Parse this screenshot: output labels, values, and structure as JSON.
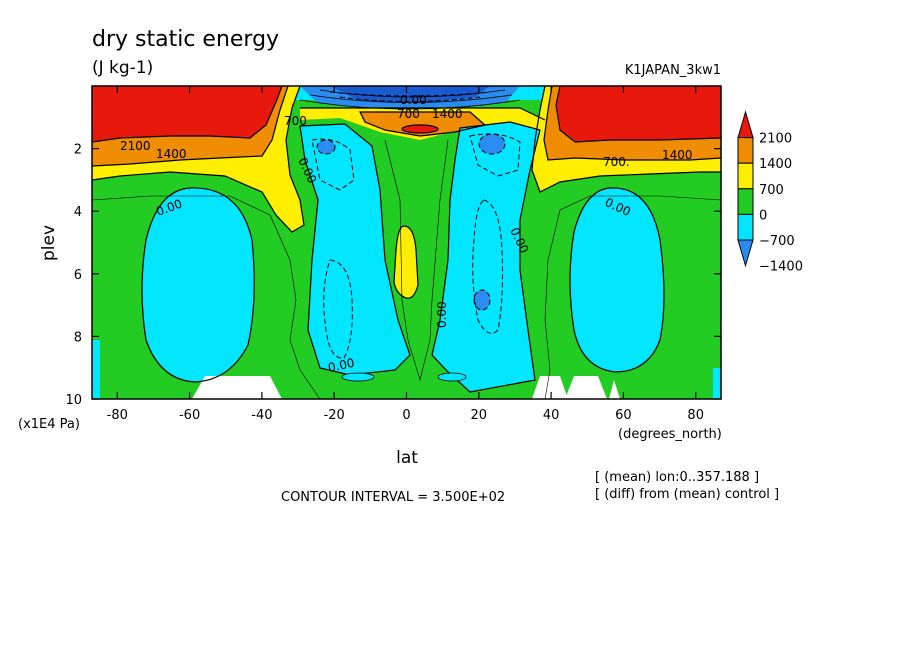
{
  "chart_data": {
    "type": "contour",
    "title": "dry static energy",
    "units": "(J kg-1)",
    "run_label": "K1JAPAN_3kw1",
    "xlabel": "lat",
    "ylabel": "plev",
    "x_unit_label": "(degrees_north)",
    "y_unit_label": "(x1E4 Pa)",
    "xlim": [
      -87,
      87
    ],
    "ylim": [
      10,
      0
    ],
    "x_ticks": [
      "-80",
      "-60",
      "-40",
      "-20",
      "0",
      "20",
      "40",
      "60",
      "80"
    ],
    "x_tick_values": [
      -80,
      -60,
      -40,
      -20,
      0,
      20,
      40,
      60,
      80
    ],
    "y_ticks": [
      "2",
      "4",
      "6",
      "8",
      "10"
    ],
    "y_tick_values": [
      2,
      4,
      6,
      8,
      10
    ],
    "colorbar": {
      "labels": [
        "2100",
        "1400",
        "700",
        "0",
        "−700",
        "−1400"
      ],
      "colors": [
        "#e8190c",
        "#f08c00",
        "#ffee00",
        "#22cc22",
        "#00e6ff",
        "#2a8cf0"
      ]
    },
    "contour_labels": [
      "2100",
      "1400",
      "700",
      "0.00",
      "0.00",
      "0.00",
      "0.00",
      "0.00",
      "0.00",
      "0.00",
      "700.",
      "1400",
      "700",
      "1400"
    ],
    "contour_interval_text": "CONTOUR INTERVAL = 3.500E+02",
    "notes": [
      "[ (mean) lon:0..357.188 ]",
      "[ (diff) from (mean) control ]"
    ]
  }
}
